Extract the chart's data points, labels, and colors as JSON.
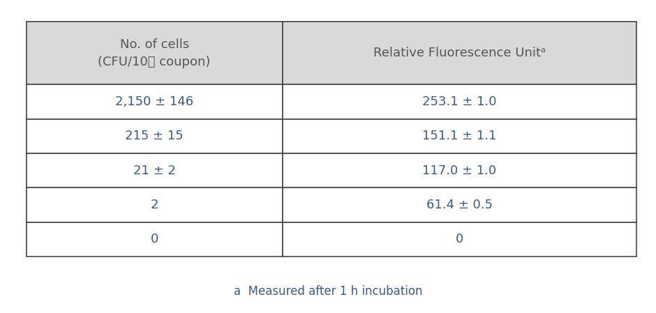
{
  "col1_header_line1": "No. of cells",
  "col1_header_line2": "(CFU/10㎡ coupon)",
  "col2_header": "Relative Fluorescence Unitᵃ",
  "rows": [
    [
      "2,150 ± 146",
      "253.1 ± 1.0"
    ],
    [
      "215 ± 15",
      "151.1 ± 1.1"
    ],
    [
      "21 ± 2",
      "117.0 ± 1.0"
    ],
    [
      "2",
      "61.4 ± 0.5"
    ],
    [
      "0",
      "0"
    ]
  ],
  "footnote": "a  Measured after 1 h incubation",
  "header_bg": "#d9d9d9",
  "border_color": "#444444",
  "text_color_data": "#3a5a8c",
  "text_color_header": "#555555",
  "footnote_color": "#3a5a8c",
  "fig_bg": "#ffffff",
  "col_split": 0.42
}
